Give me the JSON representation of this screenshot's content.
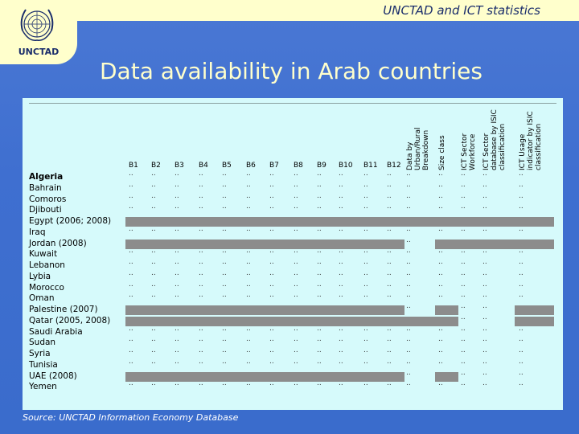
{
  "header": {
    "subtitle": "UNCTAD and ICT statistics"
  },
  "logo": {
    "label": "UNCTAD"
  },
  "title": "Data availability in Arab countries",
  "table": {
    "columns": [
      "B1",
      "B2",
      "B3",
      "B4",
      "B5",
      "B6",
      "B7",
      "B8",
      "B9",
      "B10",
      "B11",
      "B12"
    ],
    "rotated_columns": [
      "Data by Urban/Rural Breakdown",
      "Size class",
      "ICT Sector Workforce",
      "ICT Sector database by ISIC classification",
      "ICT Usage indicator by ISIC classification"
    ],
    "rows": [
      {
        "country": "Algeria",
        "bold": true,
        "band": "none"
      },
      {
        "country": "Bahrain",
        "band": "none"
      },
      {
        "country": "Comoros",
        "band": "none"
      },
      {
        "country": "Djibouti",
        "band": "none"
      },
      {
        "country": "Egypt (2006; 2008)",
        "band": "full"
      },
      {
        "country": "Iraq",
        "band": "none"
      },
      {
        "country": "Jordan (2008)",
        "band": "split"
      },
      {
        "country": "Kuwait",
        "band": "none"
      },
      {
        "country": "Lebanon",
        "band": "none"
      },
      {
        "country": "Lybia",
        "band": "none"
      },
      {
        "country": "Morocco",
        "band": "none"
      },
      {
        "country": "Oman",
        "band": "none"
      },
      {
        "country": "Palestine (2007)",
        "band": "palestine"
      },
      {
        "country": "Qatar (2005, 2008)",
        "band": "qatar"
      },
      {
        "country": "Saudi Arabia",
        "band": "none"
      },
      {
        "country": "Sudan",
        "band": "none"
      },
      {
        "country": "Syria",
        "band": "none"
      },
      {
        "country": "Tunisia",
        "band": "none"
      },
      {
        "country": "UAE (2008)",
        "band": "uae"
      },
      {
        "country": "Yemen",
        "band": "none"
      }
    ],
    "missing_marker": ".."
  },
  "source": "Source: UNCTAD Information Economy Database",
  "colors": {
    "band": "#8c8c8c",
    "panel": "#d6fafb",
    "background": "#3f6fd0",
    "title": "#ffffcc"
  }
}
